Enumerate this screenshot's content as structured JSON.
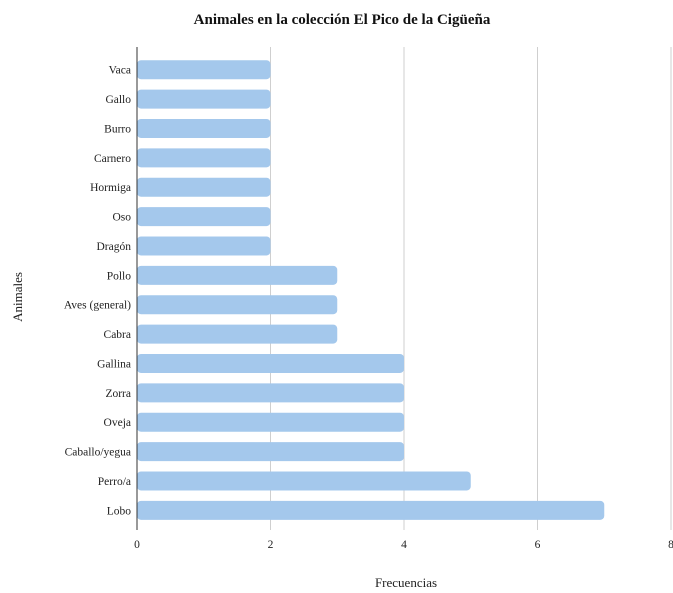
{
  "chart_data": {
    "type": "bar",
    "orientation": "horizontal",
    "title": "Animales en la colección El Pico de la Cigüeña",
    "xlabel": "Frecuencias",
    "ylabel": "Animales",
    "categories": [
      "Vaca",
      "Gallo",
      "Burro",
      "Carnero",
      "Hormiga",
      "Oso",
      "Dragón",
      "Pollo",
      "Aves (general)",
      "Cabra",
      "Gallina",
      "Zorra",
      "Oveja",
      "Caballo/yegua",
      "Perro/a",
      "Lobo"
    ],
    "values": [
      2,
      2,
      2,
      2,
      2,
      2,
      2,
      3,
      3,
      3,
      4,
      4,
      4,
      4,
      5,
      7
    ],
    "xlim": [
      0,
      8
    ],
    "xticks": [
      "0",
      "2",
      "4",
      "6",
      "8"
    ],
    "grid": true,
    "bar_color": "#a4c8ec"
  }
}
